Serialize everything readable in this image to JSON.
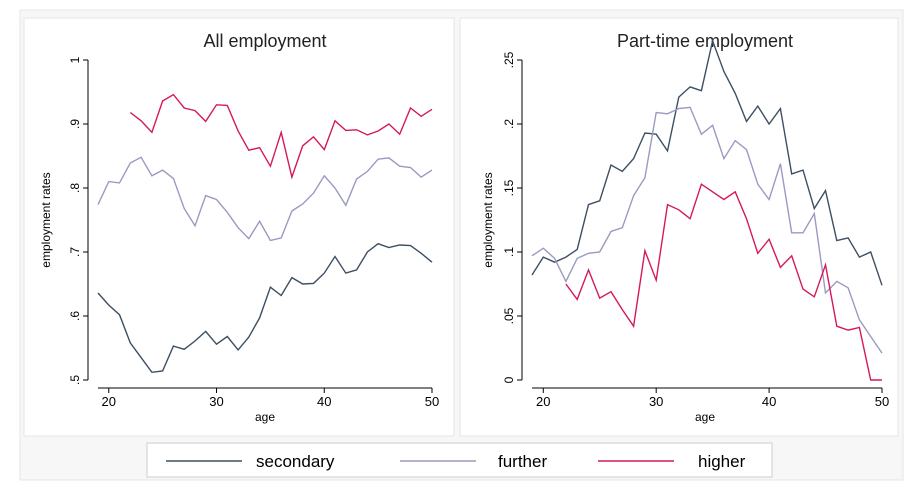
{
  "colors": {
    "secondary": "#3d4f63",
    "further": "#9a9ac2",
    "higher": "#d4195b",
    "panel_bg": "#ffffff",
    "outer_bg": "#f5f5f5",
    "axis": "#000000"
  },
  "legend": {
    "items": [
      {
        "label": "secondary",
        "series": "secondary"
      },
      {
        "label": "further",
        "series": "further"
      },
      {
        "label": "higher",
        "series": "higher"
      }
    ]
  },
  "chart_data": [
    {
      "type": "line",
      "title": "All employment",
      "xlabel": "age",
      "ylabel": "employment rates",
      "xlim": [
        19,
        50
      ],
      "ylim": [
        0.5,
        1.0
      ],
      "xticks": [
        {
          "v": 20,
          "label": "20"
        },
        {
          "v": 30,
          "label": "30"
        },
        {
          "v": 40,
          "label": "40"
        },
        {
          "v": 50,
          "label": "50"
        }
      ],
      "yticks": [
        {
          "v": 0.5,
          "label": ".5"
        },
        {
          "v": 0.6,
          "label": ".6"
        },
        {
          "v": 0.7,
          "label": ".7"
        },
        {
          "v": 0.8,
          "label": ".8"
        },
        {
          "v": 0.9,
          "label": ".9"
        },
        {
          "v": 1.0,
          "label": "1"
        }
      ],
      "grid": false,
      "series": [
        {
          "name": "secondary",
          "x": [
            19,
            20,
            21,
            22,
            23,
            24,
            25,
            26,
            27,
            28,
            29,
            30,
            31,
            32,
            33,
            34,
            35,
            36,
            37,
            38,
            39,
            40,
            41,
            42,
            43,
            44,
            45,
            46,
            47,
            48,
            49,
            50
          ],
          "y": [
            0.636,
            0.617,
            0.602,
            0.558,
            0.535,
            0.512,
            0.514,
            0.553,
            0.548,
            0.561,
            0.576,
            0.556,
            0.568,
            0.547,
            0.567,
            0.597,
            0.645,
            0.632,
            0.66,
            0.65,
            0.651,
            0.667,
            0.693,
            0.667,
            0.672,
            0.7,
            0.713,
            0.707,
            0.711,
            0.71,
            0.698,
            0.684
          ]
        },
        {
          "name": "further",
          "x": [
            19,
            20,
            21,
            22,
            23,
            24,
            25,
            26,
            27,
            28,
            29,
            30,
            31,
            32,
            33,
            34,
            35,
            36,
            37,
            38,
            39,
            40,
            41,
            42,
            43,
            44,
            45,
            46,
            47,
            48,
            49,
            50
          ],
          "y": [
            0.774,
            0.81,
            0.808,
            0.839,
            0.848,
            0.819,
            0.828,
            0.815,
            0.768,
            0.741,
            0.788,
            0.782,
            0.762,
            0.738,
            0.721,
            0.748,
            0.718,
            0.722,
            0.764,
            0.775,
            0.792,
            0.819,
            0.8,
            0.773,
            0.814,
            0.826,
            0.845,
            0.847,
            0.834,
            0.832,
            0.817,
            0.828
          ]
        },
        {
          "name": "higher",
          "x": [
            22,
            23,
            24,
            25,
            26,
            27,
            28,
            29,
            30,
            31,
            32,
            33,
            34,
            35,
            36,
            37,
            38,
            39,
            40,
            41,
            42,
            43,
            44,
            45,
            46,
            47,
            48,
            49,
            50
          ],
          "y": [
            0.918,
            0.905,
            0.887,
            0.936,
            0.946,
            0.925,
            0.921,
            0.904,
            0.93,
            0.929,
            0.889,
            0.859,
            0.863,
            0.834,
            0.887,
            0.817,
            0.866,
            0.88,
            0.86,
            0.905,
            0.89,
            0.891,
            0.883,
            0.889,
            0.9,
            0.884,
            0.925,
            0.912,
            0.923
          ]
        }
      ]
    },
    {
      "type": "line",
      "title": "Part-time employment",
      "xlabel": "age",
      "ylabel": "employment rates",
      "xlim": [
        19,
        50
      ],
      "ylim": [
        0,
        0.25
      ],
      "xticks": [
        {
          "v": 20,
          "label": "20"
        },
        {
          "v": 30,
          "label": "30"
        },
        {
          "v": 40,
          "label": "40"
        },
        {
          "v": 50,
          "label": "50"
        }
      ],
      "yticks": [
        {
          "v": 0,
          "label": "0"
        },
        {
          "v": 0.05,
          "label": ".05"
        },
        {
          "v": 0.1,
          "label": ".1"
        },
        {
          "v": 0.15,
          "label": ".15"
        },
        {
          "v": 0.2,
          "label": ".2"
        },
        {
          "v": 0.25,
          "label": ".25"
        }
      ],
      "grid": false,
      "series": [
        {
          "name": "secondary",
          "x": [
            19,
            20,
            21,
            22,
            23,
            24,
            25,
            26,
            27,
            28,
            29,
            30,
            31,
            32,
            33,
            34,
            35,
            36,
            37,
            38,
            39,
            40,
            41,
            42,
            43,
            44,
            45,
            46,
            47,
            48,
            49,
            50
          ],
          "y": [
            0.082,
            0.096,
            0.092,
            0.096,
            0.102,
            0.137,
            0.14,
            0.168,
            0.163,
            0.173,
            0.193,
            0.192,
            0.179,
            0.221,
            0.229,
            0.226,
            0.265,
            0.241,
            0.224,
            0.202,
            0.214,
            0.2,
            0.212,
            0.161,
            0.164,
            0.134,
            0.148,
            0.109,
            0.111,
            0.096,
            0.1,
            0.074
          ]
        },
        {
          "name": "further",
          "x": [
            19,
            20,
            21,
            22,
            23,
            24,
            25,
            26,
            27,
            28,
            29,
            30,
            31,
            32,
            33,
            34,
            35,
            36,
            37,
            38,
            39,
            40,
            41,
            42,
            43,
            44,
            45,
            46,
            47,
            48,
            49,
            50
          ],
          "y": [
            0.097,
            0.103,
            0.095,
            0.077,
            0.095,
            0.099,
            0.1,
            0.116,
            0.119,
            0.144,
            0.158,
            0.209,
            0.208,
            0.212,
            0.213,
            0.192,
            0.199,
            0.173,
            0.187,
            0.18,
            0.153,
            0.141,
            0.169,
            0.115,
            0.115,
            0.13,
            0.068,
            0.077,
            0.072,
            0.047,
            0.034,
            0.021
          ]
        },
        {
          "name": "higher",
          "x": [
            22,
            23,
            24,
            25,
            26,
            27,
            28,
            29,
            30,
            31,
            32,
            33,
            34,
            35,
            36,
            37,
            38,
            39,
            40,
            41,
            42,
            43,
            44,
            45,
            46,
            47,
            48,
            49,
            50
          ],
          "y": [
            0.075,
            0.063,
            0.086,
            0.064,
            0.069,
            0.055,
            0.042,
            0.101,
            0.078,
            0.137,
            0.133,
            0.126,
            0.153,
            0.147,
            0.141,
            0.147,
            0.126,
            0.099,
            0.11,
            0.088,
            0.097,
            0.071,
            0.065,
            0.09,
            0.042,
            0.039,
            0.041,
            0.0,
            0.0
          ]
        }
      ]
    }
  ]
}
